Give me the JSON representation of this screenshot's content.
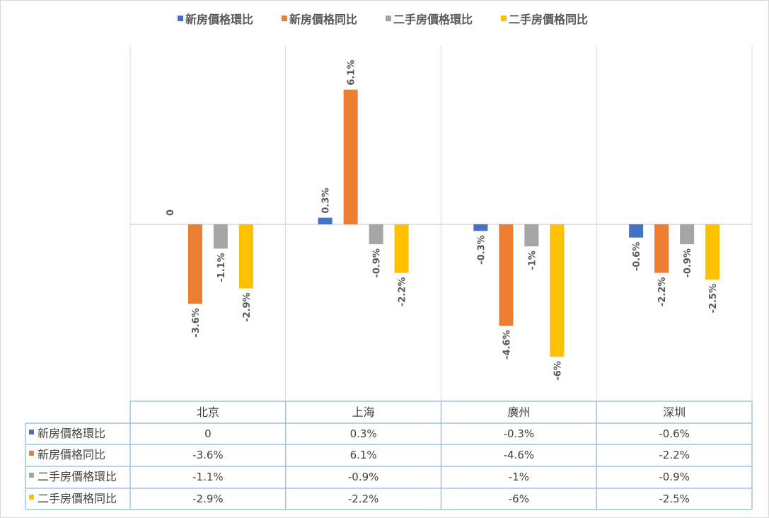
{
  "chart_data": {
    "type": "bar",
    "title": "",
    "xlabel": "",
    "ylabel": "",
    "categories": [
      "北京",
      "上海",
      "廣州",
      "深圳"
    ],
    "series": [
      {
        "name": "新房價格環比",
        "values": [
          0,
          0.3,
          -0.3,
          -0.6
        ],
        "labels": [
          "0",
          "0.3%",
          "-0.3%",
          "-0.6%"
        ],
        "color": "#4472C4"
      },
      {
        "name": "新房價格同比",
        "values": [
          -3.6,
          6.1,
          -4.6,
          -2.2
        ],
        "labels": [
          "-3.6%",
          "6.1%",
          "-4.6%",
          "-2.2%"
        ],
        "color": "#ED7D31"
      },
      {
        "name": "二手房價格環比",
        "values": [
          -1.1,
          -0.9,
          -1,
          -0.9
        ],
        "labels": [
          "-1.1%",
          "-0.9%",
          "-1%",
          "-0.9%"
        ],
        "color": "#A5A5A5"
      },
      {
        "name": "二手房價格同比",
        "values": [
          -2.9,
          -2.2,
          -6,
          -2.5
        ],
        "labels": [
          "-2.9%",
          "-2.2%",
          "-6%",
          "-2.5%"
        ],
        "color": "#FFC000"
      }
    ],
    "ylim": [
      -8,
      8
    ],
    "legend": "top",
    "data_table": true,
    "gridlines": "vertical category separators"
  }
}
